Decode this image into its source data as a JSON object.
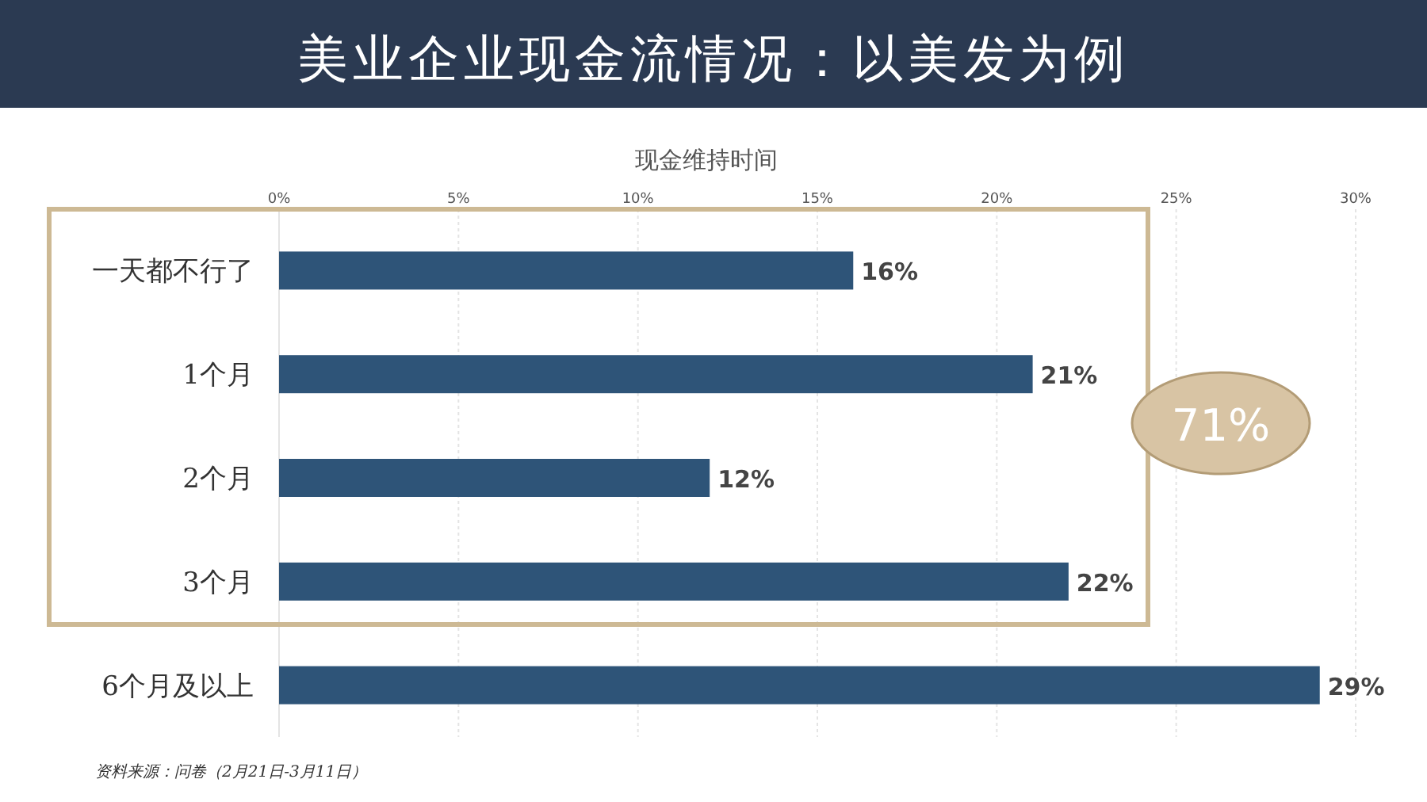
{
  "chart_data": {
    "type": "bar",
    "orientation": "horizontal",
    "title": "美业企业现金流情况：以美发为例",
    "xlabel": "现金维持时间",
    "categories": [
      "一天都不行了",
      "1个月",
      "2个月",
      "3个月",
      "6个月及以上"
    ],
    "values": [
      16,
      21,
      12,
      22,
      29
    ],
    "value_labels": [
      "16%",
      "21%",
      "12%",
      "22%",
      "29%"
    ],
    "color": "#2e5478",
    "xlim": [
      0,
      30
    ],
    "xticks": [
      {
        "value": 0,
        "label": "0%"
      },
      {
        "value": 5,
        "label": "5%"
      },
      {
        "value": 10,
        "label": "10%"
      },
      {
        "value": 15,
        "label": "15%"
      },
      {
        "value": 20,
        "label": "20%"
      },
      {
        "value": 25,
        "label": "25%"
      },
      {
        "value": 30,
        "label": "30%"
      }
    ],
    "grid": "x",
    "annotations": [
      "71%",
      "资料来源：问卷（2月21日-3月11日）"
    ]
  }
}
